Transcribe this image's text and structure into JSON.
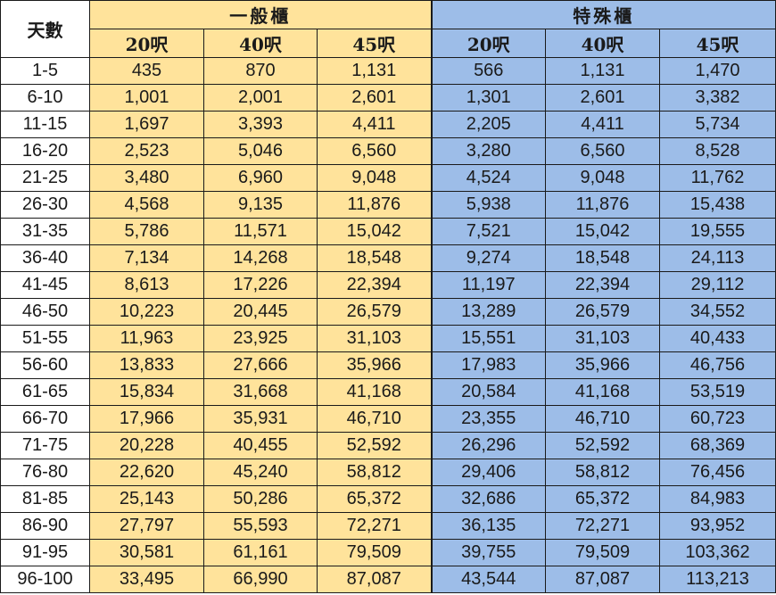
{
  "headers": {
    "days": "天數",
    "general": "一般櫃",
    "special": "特殊櫃",
    "sizes": [
      "20呎",
      "40呎",
      "45呎"
    ]
  },
  "colors": {
    "general_bg": "#ffe39b",
    "special_bg": "#9dbde8"
  },
  "rows": [
    {
      "days": "1-5",
      "general": [
        "435",
        "870",
        "1,131"
      ],
      "special": [
        "566",
        "1,131",
        "1,470"
      ]
    },
    {
      "days": "6-10",
      "general": [
        "1,001",
        "2,001",
        "2,601"
      ],
      "special": [
        "1,301",
        "2,601",
        "3,382"
      ]
    },
    {
      "days": "11-15",
      "general": [
        "1,697",
        "3,393",
        "4,411"
      ],
      "special": [
        "2,205",
        "4,411",
        "5,734"
      ]
    },
    {
      "days": "16-20",
      "general": [
        "2,523",
        "5,046",
        "6,560"
      ],
      "special": [
        "3,280",
        "6,560",
        "8,528"
      ]
    },
    {
      "days": "21-25",
      "general": [
        "3,480",
        "6,960",
        "9,048"
      ],
      "special": [
        "4,524",
        "9,048",
        "11,762"
      ]
    },
    {
      "days": "26-30",
      "general": [
        "4,568",
        "9,135",
        "11,876"
      ],
      "special": [
        "5,938",
        "11,876",
        "15,438"
      ]
    },
    {
      "days": "31-35",
      "general": [
        "5,786",
        "11,571",
        "15,042"
      ],
      "special": [
        "7,521",
        "15,042",
        "19,555"
      ]
    },
    {
      "days": "36-40",
      "general": [
        "7,134",
        "14,268",
        "18,548"
      ],
      "special": [
        "9,274",
        "18,548",
        "24,113"
      ]
    },
    {
      "days": "41-45",
      "general": [
        "8,613",
        "17,226",
        "22,394"
      ],
      "special": [
        "11,197",
        "22,394",
        "29,112"
      ]
    },
    {
      "days": "46-50",
      "general": [
        "10,223",
        "20,445",
        "26,579"
      ],
      "special": [
        "13,289",
        "26,579",
        "34,552"
      ]
    },
    {
      "days": "51-55",
      "general": [
        "11,963",
        "23,925",
        "31,103"
      ],
      "special": [
        "15,551",
        "31,103",
        "40,433"
      ]
    },
    {
      "days": "56-60",
      "general": [
        "13,833",
        "27,666",
        "35,966"
      ],
      "special": [
        "17,983",
        "35,966",
        "46,756"
      ]
    },
    {
      "days": "61-65",
      "general": [
        "15,834",
        "31,668",
        "41,168"
      ],
      "special": [
        "20,584",
        "41,168",
        "53,519"
      ]
    },
    {
      "days": "66-70",
      "general": [
        "17,966",
        "35,931",
        "46,710"
      ],
      "special": [
        "23,355",
        "46,710",
        "60,723"
      ]
    },
    {
      "days": "71-75",
      "general": [
        "20,228",
        "40,455",
        "52,592"
      ],
      "special": [
        "26,296",
        "52,592",
        "68,369"
      ]
    },
    {
      "days": "76-80",
      "general": [
        "22,620",
        "45,240",
        "58,812"
      ],
      "special": [
        "29,406",
        "58,812",
        "76,456"
      ]
    },
    {
      "days": "81-85",
      "general": [
        "25,143",
        "50,286",
        "65,372"
      ],
      "special": [
        "32,686",
        "65,372",
        "84,983"
      ]
    },
    {
      "days": "86-90",
      "general": [
        "27,797",
        "55,593",
        "72,271"
      ],
      "special": [
        "36,135",
        "72,271",
        "93,952"
      ]
    },
    {
      "days": "91-95",
      "general": [
        "30,581",
        "61,161",
        "79,509"
      ],
      "special": [
        "39,755",
        "79,509",
        "103,362"
      ]
    },
    {
      "days": "96-100",
      "general": [
        "33,495",
        "66,990",
        "87,087"
      ],
      "special": [
        "43,544",
        "87,087",
        "113,213"
      ]
    }
  ]
}
